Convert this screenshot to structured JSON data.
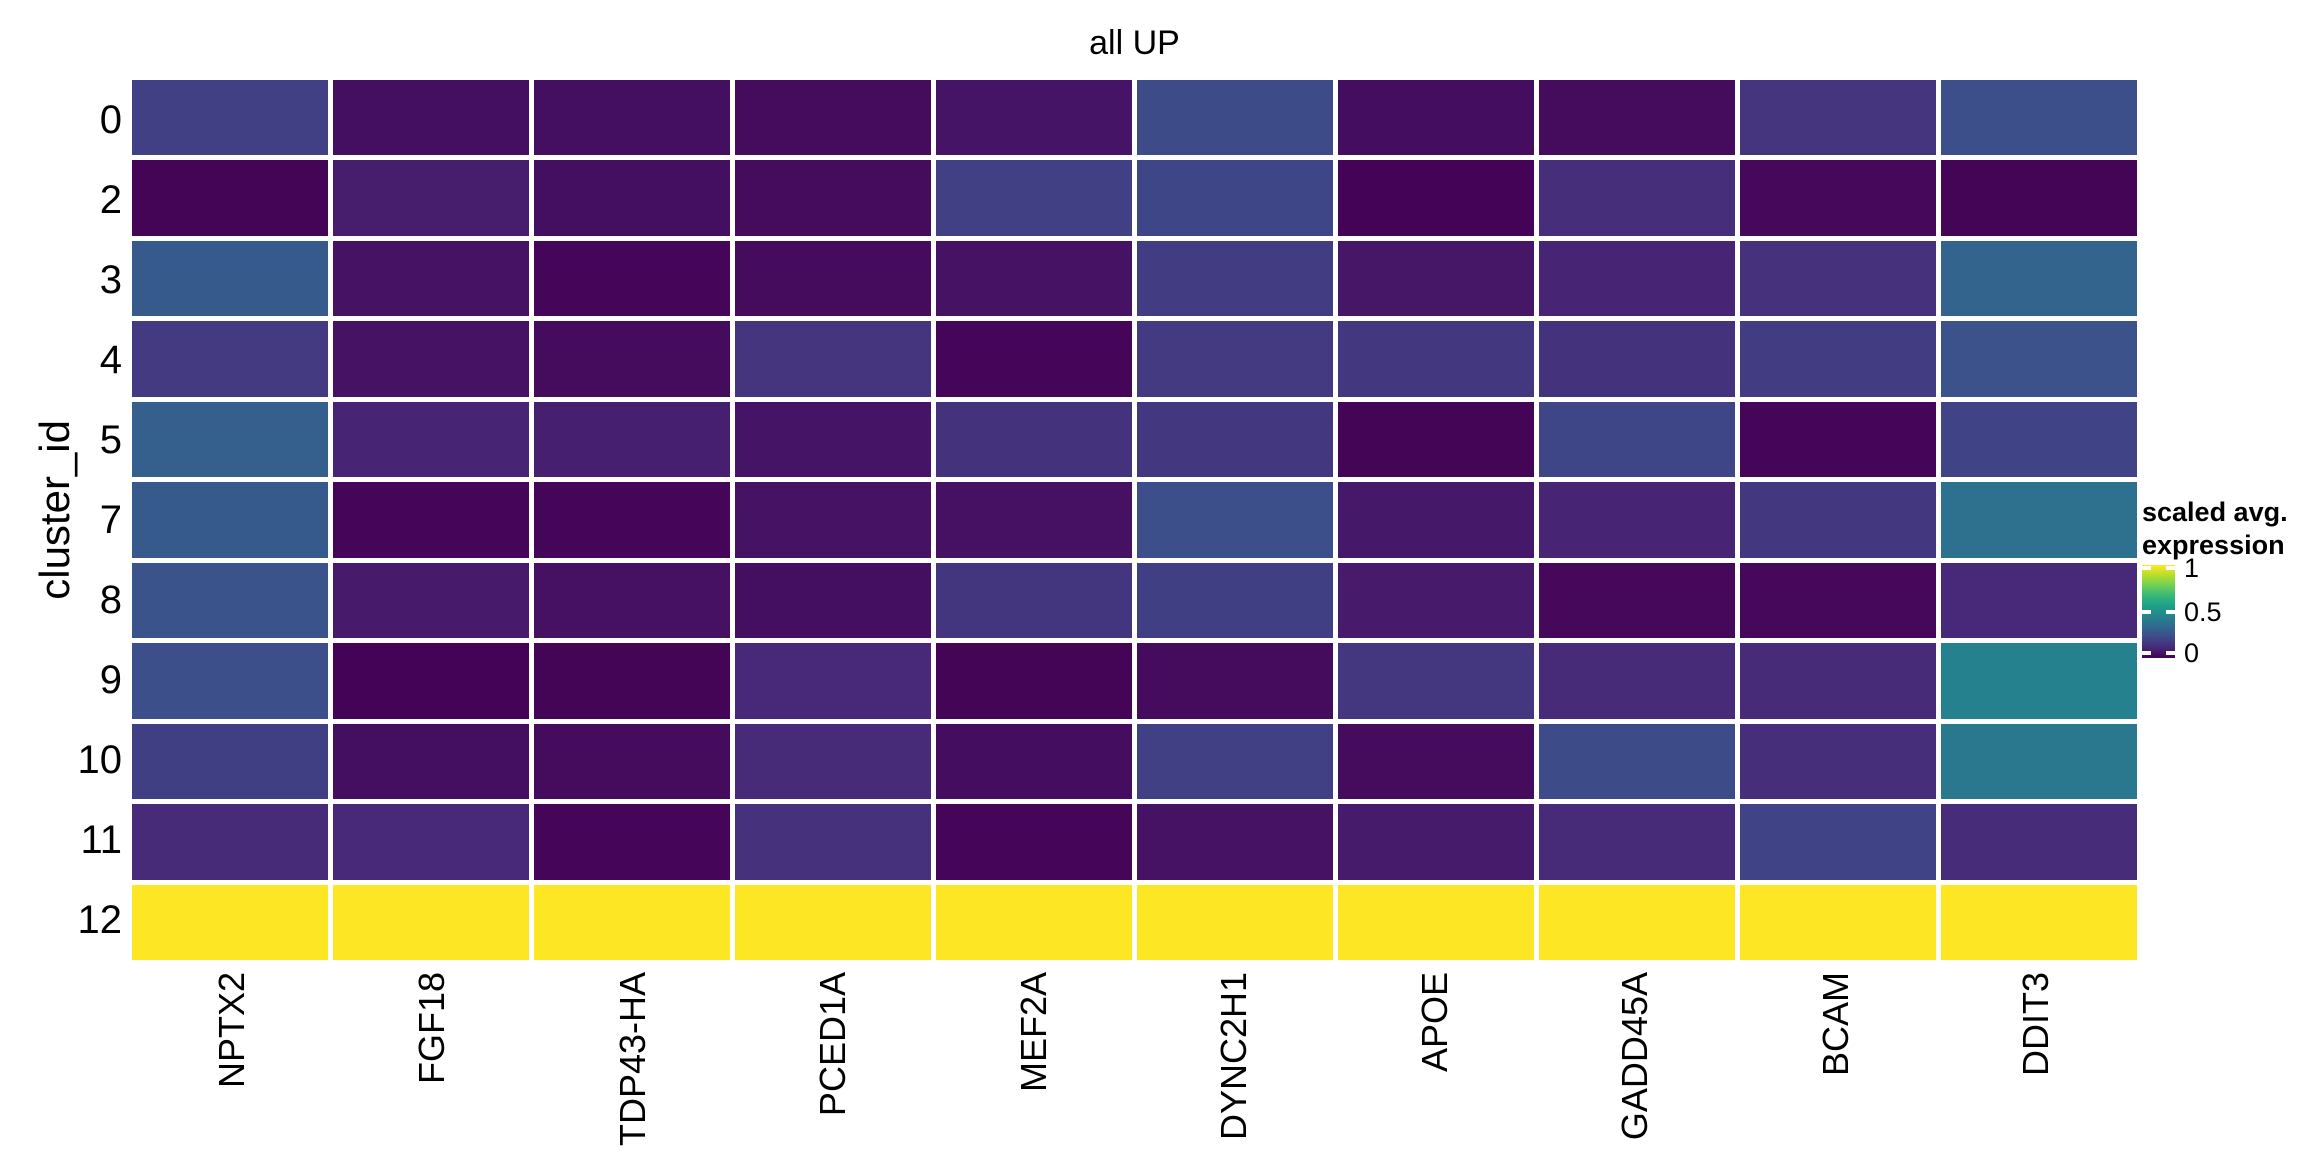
{
  "title": "all UP",
  "y_axis": {
    "label": "cluster_id",
    "ticks": [
      "0",
      "2",
      "3",
      "4",
      "5",
      "7",
      "8",
      "9",
      "10",
      "11",
      "12"
    ]
  },
  "x_axis": {
    "ticks": [
      "NPTX2",
      "FGF18",
      "TDP43-HA",
      "PCED1A",
      "MEF2A",
      "DYNC2H1",
      "APOE",
      "GADD45A",
      "BCAM",
      "DDIT3"
    ]
  },
  "legend": {
    "title_line1": "scaled avg.",
    "title_line2": "expression",
    "ticks": [
      "1",
      "0.5",
      "0"
    ]
  },
  "colors": {
    "background": "#ffffff",
    "cell_border": "#ffffff",
    "text": "#000000",
    "viridis_anchors": [
      "#440154",
      "#482878",
      "#3e4a89",
      "#31688e",
      "#26828e",
      "#1f9e89",
      "#35b779",
      "#6ece58",
      "#b5de2b",
      "#fde725"
    ]
  },
  "chart_data": {
    "type": "heatmap",
    "title": "all UP",
    "xlabel": "",
    "ylabel": "cluster_id",
    "value_name": "scaled avg. expression",
    "value_range": [
      0,
      1
    ],
    "colormap": "viridis",
    "legend_position": "right",
    "x_categories": [
      "NPTX2",
      "FGF18",
      "TDP43-HA",
      "PCED1A",
      "MEF2A",
      "DYNC2H1",
      "APOE",
      "GADD45A",
      "BCAM",
      "DDIT3"
    ],
    "y_categories": [
      "0",
      "2",
      "3",
      "4",
      "5",
      "7",
      "8",
      "9",
      "10",
      "11",
      "12"
    ],
    "rows": [
      {
        "cluster_id": "0",
        "values": [
          0.19,
          0.04,
          0.04,
          0.03,
          0.055,
          0.23,
          0.035,
          0.03,
          0.15,
          0.24
        ]
      },
      {
        "cluster_id": "2",
        "values": [
          0.01,
          0.08,
          0.04,
          0.03,
          0.19,
          0.21,
          0.005,
          0.13,
          0.02,
          0.01
        ]
      },
      {
        "cluster_id": "3",
        "values": [
          0.28,
          0.05,
          0.015,
          0.03,
          0.05,
          0.18,
          0.06,
          0.1,
          0.14,
          0.32
        ]
      },
      {
        "cluster_id": "4",
        "values": [
          0.17,
          0.05,
          0.03,
          0.15,
          0.015,
          0.17,
          0.165,
          0.145,
          0.175,
          0.25
        ]
      },
      {
        "cluster_id": "5",
        "values": [
          0.3,
          0.1,
          0.085,
          0.055,
          0.145,
          0.165,
          0.01,
          0.21,
          0.015,
          0.2
        ]
      },
      {
        "cluster_id": "7",
        "values": [
          0.28,
          0.015,
          0.015,
          0.05,
          0.045,
          0.24,
          0.065,
          0.1,
          0.165,
          0.37
        ]
      },
      {
        "cluster_id": "8",
        "values": [
          0.255,
          0.07,
          0.045,
          0.04,
          0.155,
          0.185,
          0.07,
          0.02,
          0.02,
          0.11
        ]
      },
      {
        "cluster_id": "9",
        "values": [
          0.24,
          0.005,
          0.01,
          0.115,
          0.01,
          0.03,
          0.16,
          0.12,
          0.12,
          0.44
        ]
      },
      {
        "cluster_id": "10",
        "values": [
          0.185,
          0.04,
          0.03,
          0.12,
          0.035,
          0.19,
          0.03,
          0.225,
          0.13,
          0.4
        ]
      },
      {
        "cluster_id": "11",
        "values": [
          0.12,
          0.11,
          0.015,
          0.14,
          0.015,
          0.05,
          0.075,
          0.12,
          0.2,
          0.125
        ]
      },
      {
        "cluster_id": "12",
        "values": [
          1,
          1,
          1,
          1,
          1,
          1,
          1,
          1,
          1,
          1
        ]
      }
    ]
  }
}
